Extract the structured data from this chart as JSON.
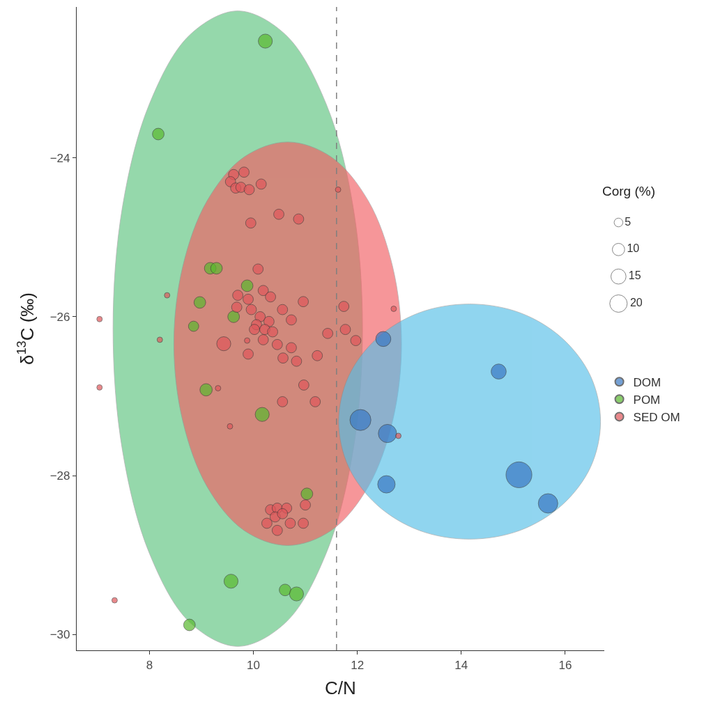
{
  "chart_data": {
    "type": "bubble",
    "xlabel": "C/N",
    "ylabel": "δ$^{13}$C (‰)",
    "legend_title": "Corg (%)",
    "xlim": [
      6.6,
      16.75
    ],
    "xticks": [
      8,
      10,
      12,
      14,
      16
    ],
    "ylim": [
      -30.2,
      -22.1
    ],
    "yticks": [
      -30,
      -28,
      -26,
      -24
    ],
    "legend": "right",
    "marker": "circle",
    "size_legend": [
      5,
      10,
      15,
      20
    ],
    "ref_lines": [
      {
        "axis": "x",
        "value": 11.6,
        "color": "#7f7f7f",
        "line_style": "dashed"
      }
    ],
    "series": [
      {
        "type": "area",
        "marker": "none",
        "color": "#5dc47f",
        "x": [
          12.1,
          11.92,
          11.4,
          10.62,
          9.7,
          8.78,
          8.0,
          7.48,
          7.3,
          7.48,
          8.0,
          8.78,
          9.7,
          10.62,
          11.4,
          11.92
        ],
        "values": [
          -26.15,
          -24.62,
          -23.32,
          -22.45,
          -22.15,
          -22.45,
          -23.32,
          -24.62,
          -26.15,
          -27.68,
          -28.98,
          -29.85,
          -30.15,
          -29.85,
          -28.98,
          -27.68
        ]
      },
      {
        "type": "area",
        "marker": "none",
        "color": "#f25f63",
        "x": [
          12.85,
          12.68,
          12.21,
          11.5,
          10.66,
          9.82,
          9.11,
          8.64,
          8.47,
          8.64,
          9.11,
          9.82,
          10.66,
          11.5,
          12.21,
          12.68
        ],
        "values": [
          -26.34,
          -25.37,
          -24.54,
          -23.99,
          -23.8,
          -23.99,
          -24.54,
          -25.37,
          -26.34,
          -27.31,
          -28.14,
          -28.69,
          -28.88,
          -28.69,
          -28.14,
          -27.31
        ]
      },
      {
        "type": "area",
        "marker": "none",
        "color": "#56bfe8",
        "x": [
          16.68,
          16.49,
          15.94,
          15.13,
          14.16,
          13.19,
          12.38,
          11.83,
          11.64,
          11.83,
          12.38,
          13.19,
          14.16,
          15.13,
          15.94,
          16.49
        ],
        "values": [
          -27.32,
          -26.75,
          -26.27,
          -25.95,
          -25.84,
          -25.95,
          -26.27,
          -26.75,
          -27.32,
          -27.89,
          -28.37,
          -28.69,
          -28.8,
          -28.69,
          -28.37,
          -27.89
        ]
      },
      {
        "name": "DOM",
        "color": "#3a78c3",
        "x": [
          12.5,
          14.72,
          12.06,
          12.58,
          12.56,
          15.11,
          15.67
        ],
        "values": [
          -26.28,
          -26.69,
          -27.3,
          -27.47,
          -28.11,
          -27.99,
          -28.35
        ],
        "sizes": [
          15,
          15,
          29,
          22,
          20,
          44,
          25
        ]
      },
      {
        "name": "POM",
        "color": "#5ab92e",
        "x": [
          10.23,
          8.17,
          9.17,
          9.29,
          8.97,
          8.85,
          9.88,
          9.62,
          9.09,
          10.17,
          11.03,
          9.57,
          10.61,
          10.83,
          8.77
        ],
        "values": [
          -22.53,
          -23.7,
          -25.39,
          -25.39,
          -25.82,
          -26.12,
          -25.61,
          -26.0,
          -26.92,
          -27.23,
          -28.23,
          -29.33,
          -29.44,
          -29.49,
          -29.88
        ],
        "sizes": [
          13,
          9,
          9,
          9,
          9,
          7,
          9,
          9,
          10,
          13,
          9,
          13,
          9,
          13,
          9
        ]
      },
      {
        "name": "SED OM",
        "color": "#e0575b",
        "x": [
          9.62,
          9.82,
          9.56,
          9.66,
          9.76,
          9.92,
          10.15,
          10.49,
          10.87,
          9.95,
          10.09,
          10.96,
          11.74,
          10.19,
          10.33,
          9.7,
          9.9,
          9.68,
          9.96,
          10.56,
          10.73,
          10.13,
          10.3,
          10.06,
          10.02,
          10.22,
          10.37,
          10.19,
          10.46,
          9.43,
          9.9,
          10.73,
          10.57,
          10.83,
          11.23,
          11.43,
          11.77,
          11.97,
          10.97,
          10.56,
          11.19,
          10.33,
          10.46,
          10.64,
          11.0,
          10.42,
          10.26,
          10.46,
          10.71,
          10.96,
          10.56,
          8.34,
          8.2,
          9.32,
          9.88,
          11.63,
          7.04,
          7.04,
          9.55,
          7.33,
          12.7,
          12.79
        ],
        "values": [
          -24.21,
          -24.18,
          -24.3,
          -24.38,
          -24.37,
          -24.4,
          -24.33,
          -24.71,
          -24.77,
          -24.82,
          -25.4,
          -25.81,
          -25.87,
          -25.67,
          -25.75,
          -25.73,
          -25.78,
          -25.88,
          -25.91,
          -25.91,
          -26.04,
          -26.0,
          -26.06,
          -26.1,
          -26.16,
          -26.16,
          -26.19,
          -26.29,
          -26.35,
          -26.34,
          -26.47,
          -26.39,
          -26.52,
          -26.56,
          -26.49,
          -26.21,
          -26.16,
          -26.3,
          -26.86,
          -27.07,
          -27.07,
          -28.43,
          -28.41,
          -28.41,
          -28.37,
          -28.52,
          -28.6,
          -28.69,
          -28.6,
          -28.6,
          -28.48,
          -25.73,
          -26.29,
          -26.9,
          -26.3,
          -24.4,
          -26.03,
          -26.89,
          -27.38,
          -29.57,
          -25.9,
          -27.5
        ],
        "sizes": [
          7,
          7,
          7,
          7,
          7,
          7,
          7,
          7,
          7,
          7,
          7,
          7,
          7,
          7,
          7,
          7,
          7,
          7,
          7,
          7,
          7,
          7,
          7,
          7,
          7,
          7,
          7,
          7,
          7,
          13,
          7,
          7,
          7,
          7,
          7,
          7,
          7,
          7,
          7,
          7,
          7,
          7,
          7,
          7,
          7,
          7,
          7,
          7,
          7,
          7,
          7,
          2,
          2,
          2,
          2,
          2,
          2,
          2,
          2,
          2,
          2,
          2
        ]
      }
    ]
  }
}
